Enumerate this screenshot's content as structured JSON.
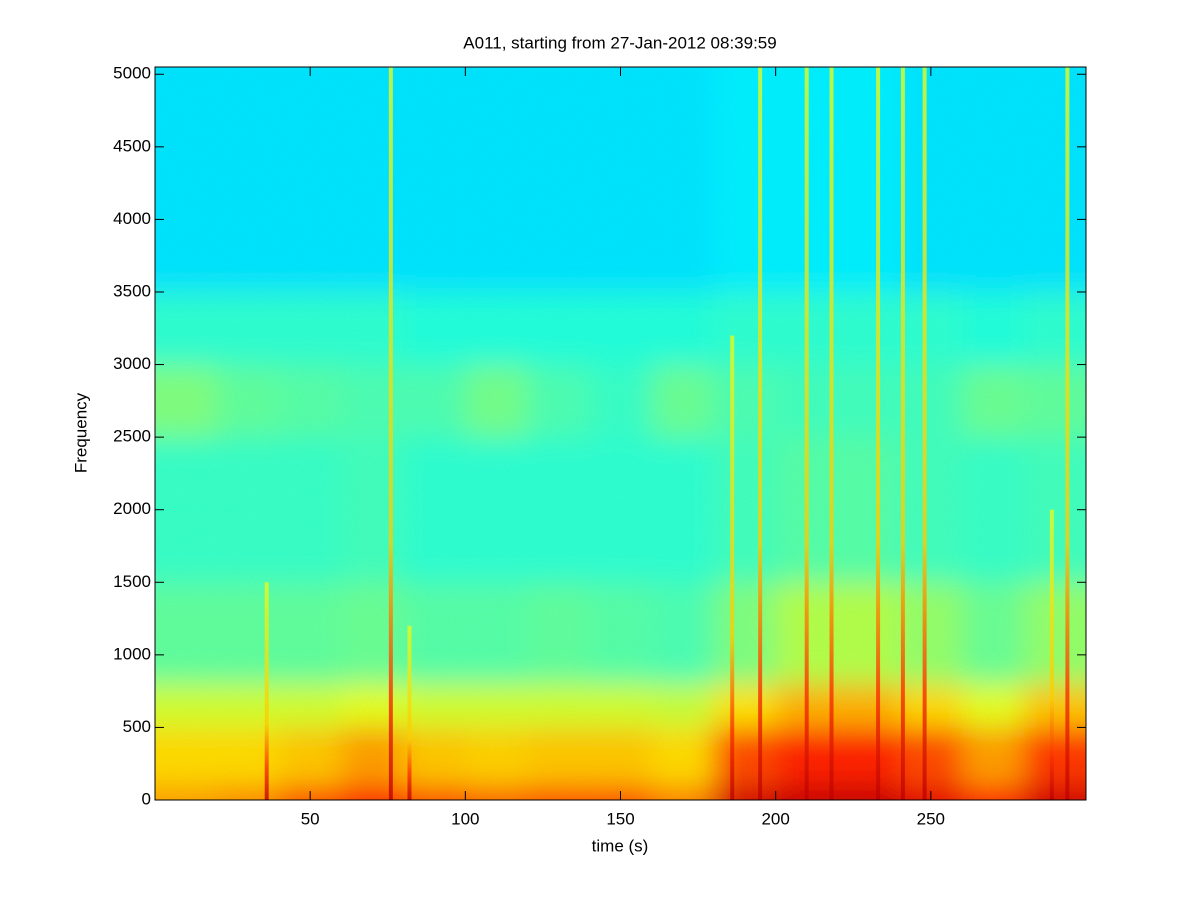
{
  "chart_data": {
    "type": "spectrogram",
    "title": "A011, starting from 27-Jan-2012 08:39:59",
    "xlabel": "time (s)",
    "ylabel": "Frequency",
    "xlim": [
      0,
      300
    ],
    "ylim": [
      0,
      5050
    ],
    "xticks": [
      50,
      100,
      150,
      200,
      250
    ],
    "yticks": [
      0,
      500,
      1000,
      1500,
      2000,
      2500,
      3000,
      3500,
      4000,
      4500,
      5000
    ],
    "colormap": "jet",
    "xbins": [
      0,
      20,
      40,
      60,
      80,
      100,
      120,
      140,
      160,
      180,
      200,
      220,
      240,
      260,
      280,
      300
    ],
    "ybins": [
      0,
      100,
      500,
      800,
      1500,
      2500,
      3000,
      3500,
      5050
    ],
    "values": [
      [
        0.72,
        0.74,
        0.8,
        0.85,
        0.8,
        0.78,
        0.8,
        0.8,
        0.75,
        0.92,
        0.93,
        0.93,
        0.9,
        0.85,
        0.92
      ],
      [
        0.66,
        0.66,
        0.68,
        0.72,
        0.68,
        0.67,
        0.68,
        0.68,
        0.66,
        0.8,
        0.84,
        0.84,
        0.8,
        0.72,
        0.82
      ],
      [
        0.58,
        0.58,
        0.58,
        0.6,
        0.58,
        0.58,
        0.58,
        0.58,
        0.57,
        0.65,
        0.7,
        0.7,
        0.66,
        0.6,
        0.68
      ],
      [
        0.47,
        0.47,
        0.47,
        0.48,
        0.46,
        0.46,
        0.47,
        0.46,
        0.45,
        0.5,
        0.55,
        0.55,
        0.52,
        0.48,
        0.52
      ],
      [
        0.43,
        0.43,
        0.43,
        0.44,
        0.42,
        0.42,
        0.42,
        0.42,
        0.42,
        0.44,
        0.46,
        0.46,
        0.44,
        0.43,
        0.44
      ],
      [
        0.5,
        0.47,
        0.46,
        0.45,
        0.45,
        0.49,
        0.45,
        0.43,
        0.48,
        0.45,
        0.44,
        0.44,
        0.44,
        0.48,
        0.47
      ],
      [
        0.42,
        0.42,
        0.42,
        0.42,
        0.41,
        0.41,
        0.41,
        0.41,
        0.41,
        0.42,
        0.42,
        0.42,
        0.42,
        0.41,
        0.42
      ],
      [
        0.35,
        0.35,
        0.35,
        0.35,
        0.35,
        0.35,
        0.35,
        0.35,
        0.35,
        0.36,
        0.36,
        0.36,
        0.35,
        0.35,
        0.35
      ]
    ],
    "streaks": [
      {
        "x": 36,
        "top": 1500
      },
      {
        "x": 76,
        "top": 5050
      },
      {
        "x": 82,
        "top": 1200
      },
      {
        "x": 186,
        "top": 3200
      },
      {
        "x": 195,
        "top": 5050
      },
      {
        "x": 210,
        "top": 5050
      },
      {
        "x": 218,
        "top": 5050
      },
      {
        "x": 233,
        "top": 5050
      },
      {
        "x": 241,
        "top": 5050
      },
      {
        "x": 248,
        "top": 5050
      },
      {
        "x": 289,
        "top": 2000
      },
      {
        "x": 294,
        "top": 5050
      }
    ]
  }
}
